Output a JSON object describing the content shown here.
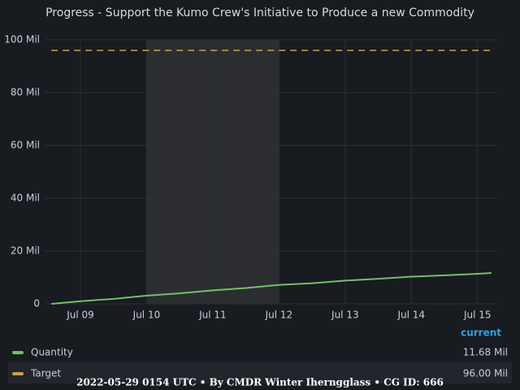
{
  "chart_data": {
    "type": "line",
    "title": "Progress - Support the Kumo Crew's Initiative to Produce a new Commodity",
    "x": [
      8.56,
      9,
      9.5,
      10,
      10.5,
      11,
      11.5,
      12,
      12.5,
      13,
      13.5,
      14,
      14.5,
      15,
      15.21
    ],
    "xlim": [
      8.46,
      15.31
    ],
    "xticks": [
      {
        "value": 9,
        "label": "Jul 09"
      },
      {
        "value": 10,
        "label": "Jul 10"
      },
      {
        "value": 11,
        "label": "Jul 11"
      },
      {
        "value": 12,
        "label": "Jul 12"
      },
      {
        "value": 13,
        "label": "Jul 13"
      },
      {
        "value": 14,
        "label": "Jul 14"
      },
      {
        "value": 15,
        "label": "Jul 15"
      }
    ],
    "ylim": [
      0,
      100
    ],
    "yticks": [
      {
        "value": 0,
        "label": "0"
      },
      {
        "value": 20,
        "label": "20 Mil"
      },
      {
        "value": 40,
        "label": "40 Mil"
      },
      {
        "value": 60,
        "label": "60 Mil"
      },
      {
        "value": 80,
        "label": "80 Mil"
      },
      {
        "value": 100,
        "label": "100 Mil"
      }
    ],
    "grid": true,
    "highlight_x": [
      10,
      12
    ],
    "legend_header": "current",
    "series": [
      {
        "name": "Quantity",
        "color": "#73bf69",
        "dashed": false,
        "values": [
          0,
          1.0,
          1.9,
          3.1,
          4.0,
          5.1,
          6.0,
          7.2,
          7.8,
          8.8,
          9.5,
          10.3,
          10.8,
          11.4,
          11.68
        ],
        "current": {
          "value": 11.68,
          "label": "11.68 Mil"
        }
      },
      {
        "name": "Target",
        "color": "#c9a24a",
        "dashed": true,
        "values": [
          96,
          96,
          96,
          96,
          96,
          96,
          96,
          96,
          96,
          96,
          96,
          96,
          96,
          96,
          96
        ],
        "current": {
          "value": 96.0,
          "label": "96.00 Mil"
        }
      }
    ],
    "footer": "2022-05-29 0154 UTC • By CMDR Winter Iherngglass • CG ID: 666"
  }
}
